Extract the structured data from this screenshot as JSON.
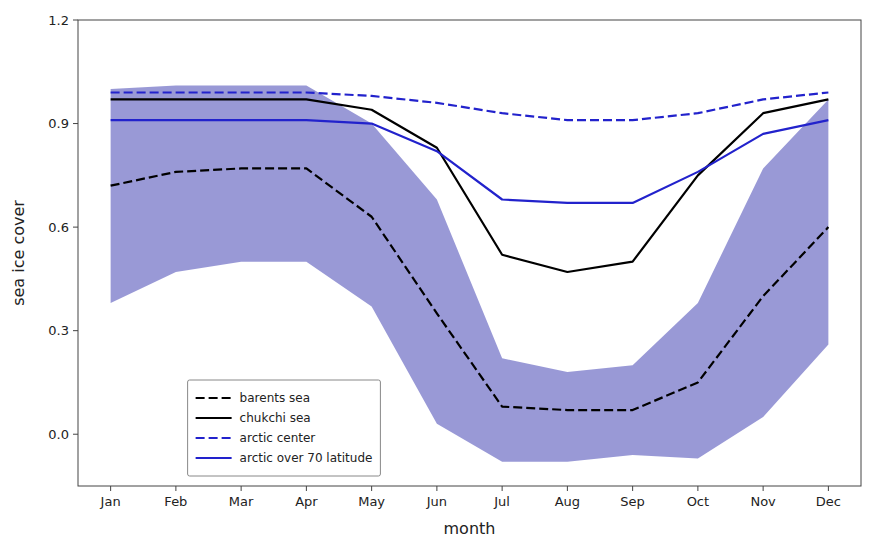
{
  "chart_data": {
    "type": "line",
    "xlabel": "month",
    "ylabel": "sea ice cover",
    "categories": [
      "Jan",
      "Feb",
      "Mar",
      "Apr",
      "May",
      "Jun",
      "Jul",
      "Aug",
      "Sep",
      "Oct",
      "Nov",
      "Dec"
    ],
    "series": [
      {
        "name": "barents sea",
        "color": "#000000",
        "line_style": "dashed",
        "values": [
          0.72,
          0.76,
          0.77,
          0.77,
          0.63,
          0.35,
          0.08,
          0.07,
          0.07,
          0.15,
          0.4,
          0.6
        ],
        "band": {
          "color": "#5555bb",
          "upper": [
            1.0,
            1.01,
            1.01,
            1.01,
            0.9,
            0.68,
            0.22,
            0.18,
            0.2,
            0.38,
            0.77,
            0.97
          ],
          "lower": [
            0.38,
            0.47,
            0.5,
            0.5,
            0.37,
            0.03,
            -0.08,
            -0.08,
            -0.06,
            -0.07,
            0.05,
            0.26
          ]
        }
      },
      {
        "name": "chukchi sea",
        "color": "#000000",
        "line_style": "solid",
        "values": [
          0.97,
          0.97,
          0.97,
          0.97,
          0.94,
          0.83,
          0.52,
          0.47,
          0.5,
          0.75,
          0.93,
          0.97
        ]
      },
      {
        "name": "arctic center",
        "color": "#2222cc",
        "line_style": "dashed",
        "values": [
          0.99,
          0.99,
          0.99,
          0.99,
          0.98,
          0.96,
          0.93,
          0.91,
          0.91,
          0.93,
          0.97,
          0.99
        ]
      },
      {
        "name": "arctic over 70 latitude",
        "color": "#2222cc",
        "line_style": "solid",
        "values": [
          0.91,
          0.91,
          0.91,
          0.91,
          0.9,
          0.82,
          0.68,
          0.67,
          0.67,
          0.76,
          0.87,
          0.91
        ]
      }
    ],
    "ylim": [
      -0.15,
      1.2
    ],
    "yticks": [
      {
        "value": 0,
        "label": "0.0"
      },
      0.3,
      0.6,
      0.9,
      1.2
    ],
    "grid": false,
    "legend": "lower left"
  }
}
